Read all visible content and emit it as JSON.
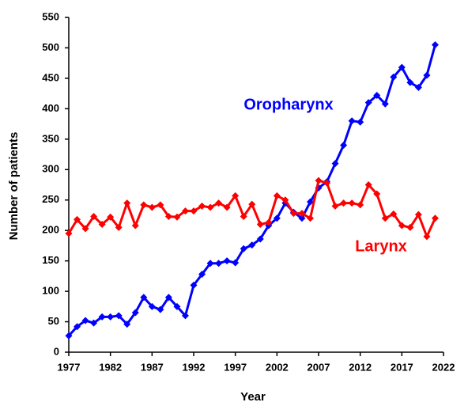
{
  "chart_data": {
    "type": "line",
    "x_label": "Year",
    "y_label": "Number of patients",
    "x": [
      1977,
      1978,
      1979,
      1980,
      1981,
      1982,
      1983,
      1984,
      1985,
      1986,
      1987,
      1988,
      1989,
      1990,
      1991,
      1992,
      1993,
      1994,
      1995,
      1996,
      1997,
      1998,
      1999,
      2000,
      2001,
      2002,
      2003,
      2004,
      2005,
      2006,
      2007,
      2008,
      2009,
      2010,
      2011,
      2012,
      2013,
      2014,
      2015,
      2016,
      2017,
      2018,
      2019,
      2020,
      2021
    ],
    "series": [
      {
        "name": "Oropharynx",
        "color": "#0000ff",
        "values": [
          27,
          42,
          52,
          48,
          58,
          58,
          60,
          46,
          65,
          90,
          75,
          70,
          90,
          75,
          60,
          110,
          128,
          146,
          146,
          150,
          147,
          170,
          176,
          186,
          208,
          220,
          245,
          230,
          220,
          247,
          270,
          280,
          310,
          340,
          380,
          378,
          410,
          422,
          408,
          452,
          468,
          443,
          435,
          455,
          505
        ]
      },
      {
        "name": "Larynx",
        "color": "#ff0000",
        "values": [
          195,
          218,
          203,
          223,
          210,
          222,
          205,
          245,
          208,
          242,
          238,
          242,
          223,
          222,
          232,
          232,
          240,
          238,
          245,
          238,
          257,
          223,
          243,
          210,
          213,
          257,
          250,
          228,
          228,
          220,
          282,
          278,
          240,
          245,
          245,
          242,
          275,
          260,
          220,
          227,
          208,
          205,
          226,
          190,
          220
        ]
      }
    ],
    "xlim": [
      1977,
      2022
    ],
    "xticks": [
      1977,
      1982,
      1987,
      1992,
      1997,
      2002,
      2007,
      2012,
      2017,
      2022
    ],
    "ylim": [
      0,
      550
    ],
    "yticks": [
      0,
      50,
      100,
      150,
      200,
      250,
      300,
      350,
      400,
      450,
      500,
      550
    ],
    "grid": false
  }
}
